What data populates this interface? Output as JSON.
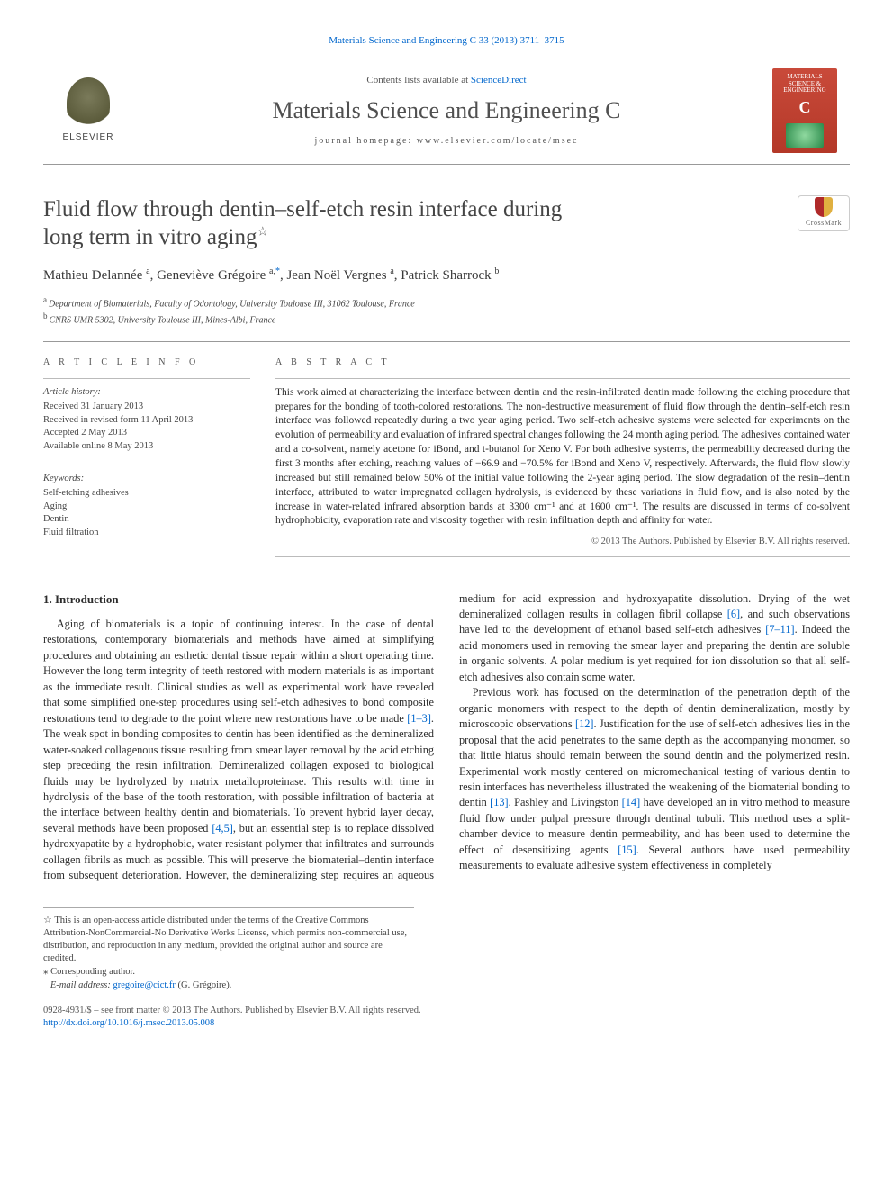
{
  "top_citation_prefix": "Materials Science and Engineering C 33 (2013) 3711–3715",
  "masthead": {
    "publisher": "ELSEVIER",
    "contents_line_prefix": "Contents lists available at ",
    "contents_line_link": "ScienceDirect",
    "journal_name": "Materials Science and Engineering C",
    "homepage_label": "journal homepage: www.elsevier.com/locate/msec",
    "cover_title": "MATERIALS SCIENCE & ENGINEERING",
    "cover_letter": "C"
  },
  "title_line1": "Fluid flow through dentin–self-etch resin interface during",
  "title_line2": "long term in vitro aging",
  "title_star": "☆",
  "crossmark_label": "CrossMark",
  "authors_html": "Mathieu Delannée ᵃ, Geneviève Grégoire ᵃ·*, Jean Noël Vergnes ᵃ, Patrick Sharrock ᵇ",
  "authors": [
    {
      "name": "Mathieu Delannée",
      "sup": "a"
    },
    {
      "name": "Geneviève Grégoire",
      "sup": "a,",
      "corr": true
    },
    {
      "name": "Jean Noël Vergnes",
      "sup": "a"
    },
    {
      "name": "Patrick Sharrock",
      "sup": "b"
    }
  ],
  "affiliations": [
    {
      "sup": "a",
      "text": "Department of Biomaterials, Faculty of Odontology, University Toulouse III, 31062 Toulouse, France"
    },
    {
      "sup": "b",
      "text": "CNRS UMR 5302, University Toulouse III, Mines-Albi, France"
    }
  ],
  "article_info": {
    "heading": "A R T I C L E   I N F O",
    "history_label": "Article history:",
    "history": [
      "Received 31 January 2013",
      "Received in revised form 11 April 2013",
      "Accepted 2 May 2013",
      "Available online 8 May 2013"
    ],
    "keywords_label": "Keywords:",
    "keywords": [
      "Self-etching adhesives",
      "Aging",
      "Dentin",
      "Fluid filtration"
    ]
  },
  "abstract": {
    "heading": "A B S T R A C T",
    "body": "This work aimed at characterizing the interface between dentin and the resin-infiltrated dentin made following the etching procedure that prepares for the bonding of tooth-colored restorations. The non-destructive measurement of fluid flow through the dentin–self-etch resin interface was followed repeatedly during a two year aging period. Two self-etch adhesive systems were selected for experiments on the evolution of permeability and evaluation of infrared spectral changes following the 24 month aging period. The adhesives contained water and a co-solvent, namely acetone for iBond, and t-butanol for Xeno V. For both adhesive systems, the permeability decreased during the first 3 months after etching, reaching values of −66.9 and −70.5% for iBond and Xeno V, respectively. Afterwards, the fluid flow slowly increased but still remained below 50% of the initial value following the 2-year aging period. The slow degradation of the resin–dentin interface, attributed to water impregnated collagen hydrolysis, is evidenced by these variations in fluid flow, and is also noted by the increase in water-related infrared absorption bands at 3300 cm⁻¹ and at 1600 cm⁻¹. The results are discussed in terms of co-solvent hydrophobicity, evaporation rate and viscosity together with resin infiltration depth and affinity for water.",
    "copyright": "© 2013 The Authors. Published by Elsevier B.V. All rights reserved."
  },
  "section1_heading": "1. Introduction",
  "para1": "Aging of biomaterials is a topic of continuing interest. In the case of dental restorations, contemporary biomaterials and methods have aimed at simplifying procedures and obtaining an esthetic dental tissue repair within a short operating time. However the long term integrity of teeth restored with modern materials is as important as the immediate result. Clinical studies as well as experimental work have revealed that some simplified one-step procedures using self-etch adhesives to bond composite restorations tend to degrade to the point where new restorations have to be made ",
  "ref1": "[1–3]",
  "para1b": ". The weak spot in bonding composites to dentin has been identified as the demineralized water-soaked collagenous tissue resulting from smear layer removal by the acid etching step preceding the resin infiltration. Demineralized collagen exposed to biological fluids may be hydrolyzed by matrix metalloproteinase. This results with time in hydrolysis of the base of the tooth restoration, with possible infiltration of bacteria at the interface between healthy dentin and biomaterials. To prevent hybrid layer decay, several methods have been",
  "para2a": "proposed ",
  "ref2": "[4,5]",
  "para2b": ", but an essential step is to replace dissolved hydroxyapatite by a hydrophobic, water resistant polymer that infiltrates and surrounds collagen fibrils as much as possible. This will preserve the biomaterial–dentin interface from subsequent deterioration. However, the demineralizing step requires an aqueous medium for acid expression and hydroxyapatite dissolution. Drying of the wet demineralized collagen results in collagen fibril collapse ",
  "ref3": "[6]",
  "para2c": ", and such observations have led to the development of ethanol based self-etch adhesives ",
  "ref4": "[7–11]",
  "para2d": ". Indeed the acid monomers used in removing the smear layer and preparing the dentin are soluble in organic solvents. A polar medium is yet required for ion dissolution so that all self-etch adhesives also contain some water.",
  "para3a": "Previous work has focused on the determination of the penetration depth of the organic monomers with respect to the depth of dentin demineralization, mostly by microscopic observations ",
  "ref5": "[12]",
  "para3b": ". Justification for the use of self-etch adhesives lies in the proposal that the acid penetrates to the same depth as the accompanying monomer, so that little hiatus should remain between the sound dentin and the polymerized resin. Experimental work mostly centered on micromechanical testing of various dentin to resin interfaces has nevertheless illustrated the weakening of the biomaterial bonding to dentin ",
  "ref6": "[13]",
  "para3c": ". Pashley and Livingston ",
  "ref7": "[14]",
  "para3d": " have developed an in vitro method to measure fluid flow under pulpal pressure through dentinal tubuli. This method uses a split-chamber device to measure dentin permeability, and has been used to determine the effect of desensitizing agents ",
  "ref8": "[15]",
  "para3e": ". Several authors have used permeability measurements to evaluate adhesive system effectiveness in completely",
  "footnotes": {
    "oa_star": "☆",
    "oa_text": "This is an open-access article distributed under the terms of the Creative Commons Attribution-NonCommercial-No Derivative Works License, which permits non-commercial use, distribution, and reproduction in any medium, provided the original author and source are credited.",
    "corr_star": "⁎",
    "corr_label": "Corresponding author.",
    "email_label": "E-mail address:",
    "email": "gregoire@cict.fr",
    "email_person": "(G. Grégoire)."
  },
  "footer": {
    "issn_line": "0928-4931/$ – see front matter © 2013 The Authors. Published by Elsevier B.V. All rights reserved.",
    "doi_prefix": "http://dx.doi.org/",
    "doi": "10.1016/j.msec.2013.05.008"
  },
  "colors": {
    "link": "#0066cc",
    "text": "#2c2c2c",
    "muted": "#555555",
    "rule": "#999999",
    "cover_bg_top": "#c94a3a",
    "cover_bg_bottom": "#b43828"
  },
  "typography": {
    "body_font": "Times New Roman",
    "body_size_pt": 9,
    "title_size_pt": 19,
    "journal_size_pt": 20,
    "abstract_size_pt": 8.5
  }
}
